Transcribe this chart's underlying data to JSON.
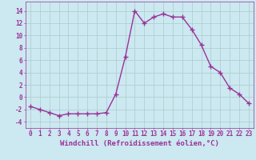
{
  "x": [
    0,
    1,
    2,
    3,
    4,
    5,
    6,
    7,
    8,
    9,
    10,
    11,
    12,
    13,
    14,
    15,
    16,
    17,
    18,
    19,
    20,
    21,
    22,
    23
  ],
  "y": [
    -1.5,
    -2.0,
    -2.5,
    -3.0,
    -2.7,
    -2.7,
    -2.7,
    -2.7,
    -2.5,
    0.5,
    6.5,
    14.0,
    12.0,
    13.0,
    13.5,
    13.0,
    13.0,
    11.0,
    8.5,
    5.0,
    4.0,
    1.5,
    0.5,
    -1.0
  ],
  "line_color": "#993399",
  "marker": "+",
  "marker_size": 4,
  "linewidth": 1.0,
  "xlabel": "Windchill (Refroidissement éolien,°C)",
  "xlabel_fontsize": 6.5,
  "bg_color": "#cce8f0",
  "grid_color": "#aacccc",
  "tick_color": "#993399",
  "xlim": [
    -0.5,
    23.5
  ],
  "ylim": [
    -5,
    15.5
  ],
  "yticks": [
    -4,
    -2,
    0,
    2,
    4,
    6,
    8,
    10,
    12,
    14
  ],
  "xticks": [
    0,
    1,
    2,
    3,
    4,
    5,
    6,
    7,
    8,
    9,
    10,
    11,
    12,
    13,
    14,
    15,
    16,
    17,
    18,
    19,
    20,
    21,
    22,
    23
  ],
  "tick_fontsize": 5.5
}
